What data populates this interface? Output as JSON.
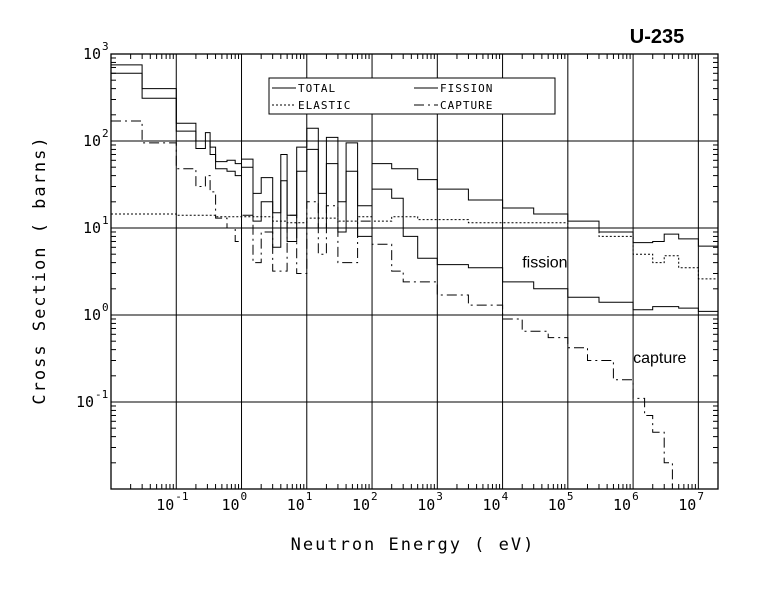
{
  "chart_data": {
    "type": "line",
    "title": "U-235",
    "xlabel": "Neutron Energy ( eV)",
    "ylabel": "Cross Section ( barns)",
    "x_scale": "log",
    "y_scale": "log",
    "xlim": [
      0.01,
      20000000
    ],
    "ylim": [
      0.01,
      1000
    ],
    "grid": true,
    "legend_position": "top-center",
    "x_ticks": [
      {
        "value": 0.1,
        "base": "10",
        "exp": "-1"
      },
      {
        "value": 1,
        "base": "10",
        "exp": "0"
      },
      {
        "value": 10,
        "base": "10",
        "exp": "1"
      },
      {
        "value": 100,
        "base": "10",
        "exp": "2"
      },
      {
        "value": 1000,
        "base": "10",
        "exp": "3"
      },
      {
        "value": 10000,
        "base": "10",
        "exp": "4"
      },
      {
        "value": 100000,
        "base": "10",
        "exp": "5"
      },
      {
        "value": 1000000,
        "base": "10",
        "exp": "6"
      },
      {
        "value": 10000000,
        "base": "10",
        "exp": "7"
      }
    ],
    "y_ticks": [
      {
        "value": 0.1,
        "base": "10",
        "exp": "-1"
      },
      {
        "value": 1,
        "base": "10",
        "exp": "0"
      },
      {
        "value": 10,
        "base": "10",
        "exp": "1"
      },
      {
        "value": 100,
        "base": "10",
        "exp": "2"
      },
      {
        "value": 1000,
        "base": "10",
        "exp": "3"
      }
    ],
    "series": [
      {
        "name": "TOTAL",
        "dash": "solid",
        "x": [
          0.01,
          0.03,
          0.1,
          0.2,
          0.28,
          0.33,
          0.4,
          0.6,
          0.8,
          1,
          1.5,
          2,
          3,
          4,
          5,
          7,
          10,
          15,
          20,
          30,
          40,
          60,
          100,
          200,
          500,
          1000,
          3000,
          10000,
          30000,
          100000,
          300000,
          1000000,
          2000000,
          3000000,
          5000000,
          10000000,
          20000000
        ],
        "y": [
          750,
          400,
          160,
          100,
          125,
          85,
          58,
          60,
          55,
          62,
          25,
          38,
          15,
          70,
          14,
          85,
          140,
          25,
          110,
          20,
          95,
          18,
          55,
          48,
          36,
          28,
          21,
          17,
          14.5,
          12,
          9,
          6.8,
          7,
          8.5,
          7.5,
          6.2,
          6.5
        ]
      },
      {
        "name": "FISSION",
        "dash": "solid",
        "x": [
          0.01,
          0.03,
          0.1,
          0.2,
          0.28,
          0.33,
          0.4,
          0.6,
          0.8,
          1,
          1.5,
          2,
          3,
          4,
          5,
          7,
          10,
          15,
          20,
          30,
          40,
          60,
          100,
          200,
          300,
          500,
          1000,
          3000,
          10000,
          30000,
          100000,
          300000,
          1000000,
          2000000,
          5000000,
          10000000,
          20000000
        ],
        "y": [
          600,
          310,
          130,
          82,
          100,
          70,
          48,
          45,
          40,
          50,
          12,
          20,
          6,
          35,
          7,
          45,
          80,
          10,
          55,
          9,
          45,
          8,
          28,
          22,
          8,
          4.5,
          3.8,
          3.5,
          2.4,
          2.0,
          1.6,
          1.4,
          1.15,
          1.25,
          1.2,
          1.1,
          2.1
        ]
      },
      {
        "name": "ELASTIC",
        "dash": "dotted",
        "x": [
          0.01,
          0.1,
          0.4,
          1,
          3,
          5,
          10,
          30,
          60,
          100,
          200,
          500,
          1000,
          3000,
          10000,
          30000,
          100000,
          300000,
          1000000,
          2000000,
          3000000,
          5000000,
          10000000,
          20000000
        ],
        "y": [
          14.5,
          14,
          13.5,
          13.5,
          12,
          11.5,
          13,
          12,
          13.5,
          12,
          13.5,
          12.5,
          12.5,
          11.5,
          11.5,
          11.5,
          10,
          8,
          5,
          4,
          4.8,
          3.5,
          2.6,
          3
        ]
      },
      {
        "name": "CAPTURE",
        "dash": "dashdot",
        "x": [
          0.01,
          0.03,
          0.1,
          0.2,
          0.28,
          0.33,
          0.4,
          0.6,
          0.8,
          1,
          1.5,
          2,
          3,
          5,
          7,
          10,
          15,
          20,
          30,
          60,
          100,
          200,
          300,
          1000,
          3000,
          10000,
          20000,
          50000,
          100000,
          200000,
          500000,
          1000000,
          1500000,
          2000000,
          3000000,
          4000000
        ],
        "y": [
          170,
          95,
          48,
          30,
          40,
          26,
          13,
          10,
          7,
          14,
          4,
          9,
          3.2,
          14,
          3,
          20,
          5,
          18,
          4,
          12,
          6.5,
          3.2,
          2.4,
          1.7,
          1.3,
          0.9,
          0.65,
          0.55,
          0.42,
          0.3,
          0.18,
          0.11,
          0.07,
          0.045,
          0.02,
          0.01
        ]
      }
    ],
    "legend": [
      {
        "label": "TOTAL",
        "dash": "solid"
      },
      {
        "label": "FISSION",
        "dash": "solid"
      },
      {
        "label": "ELASTIC",
        "dash": "dotted"
      },
      {
        "label": "CAPTURE",
        "dash": "dashdot"
      }
    ],
    "annotations": [
      {
        "text": "fission",
        "x": 20000,
        "y": 3.5
      },
      {
        "text": "capture",
        "x": 1000000,
        "y": 0.28
      }
    ]
  }
}
